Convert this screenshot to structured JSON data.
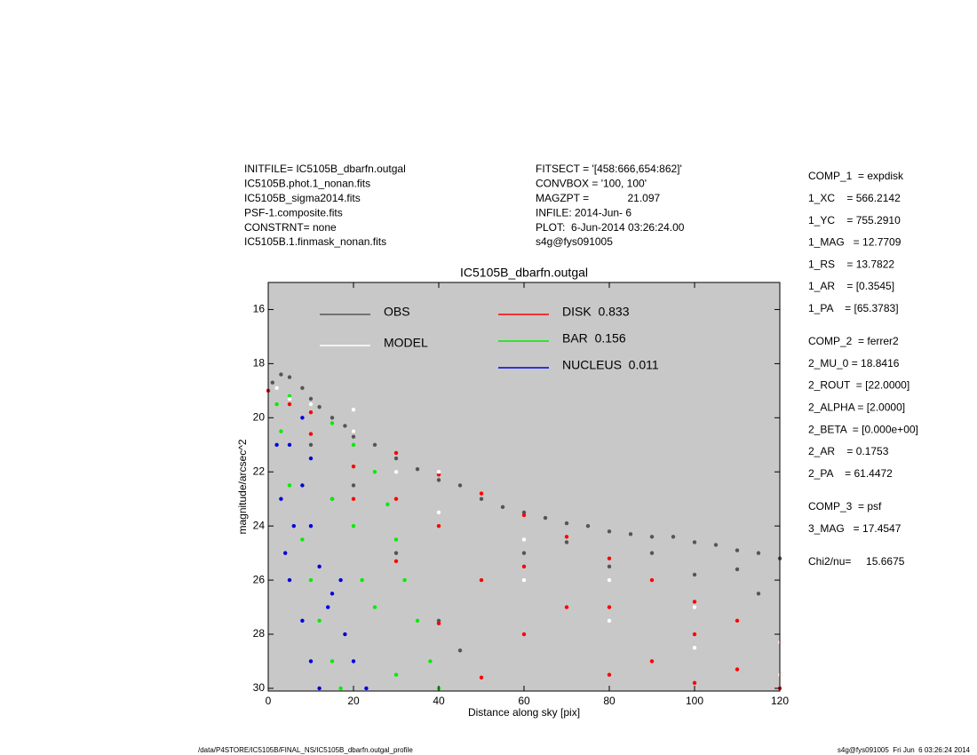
{
  "header_left": [
    "INITFILE= IC5105B_dbarfn.outgal",
    "IC5105B.phot.1_nonan.fits",
    "IC5105B_sigma2014.fits",
    "PSF-1.composite.fits",
    "CONSTRNT= none",
    "IC5105B.1.finmask_nonan.fits"
  ],
  "header_middle": [
    "FITSECT = '[458:666,654:862]'",
    "CONVBOX = '100, 100'",
    "MAGZPT =             21.097",
    "INFILE: 2014-Jun- 6",
    "PLOT:  6-Jun-2014 03:26:24.00",
    "s4g@fys091005"
  ],
  "parameters": [
    [
      "COMP_1  = expdisk",
      "1_XC    = 566.2142",
      "1_YC    = 755.2910",
      "1_MAG   = 12.7709",
      "1_RS    = 13.7822",
      "1_AR    = [0.3545]",
      "1_PA    = [65.3783]"
    ],
    [
      "COMP_2  = ferrer2",
      "2_MU_0 = 18.8416",
      "2_ROUT  = [22.0000]",
      "2_ALPHA = [2.0000]",
      "2_BETA  = [0.000e+00]",
      "2_AR    = 0.1753",
      "2_PA    = 61.4472"
    ],
    [
      "COMP_3  = psf",
      "3_MAG   = 17.4547"
    ],
    [
      "Chi2/nu=     15.6675"
    ]
  ],
  "footer_left": "/data/P4STORE/IC5105B/FINAL_NS/IC5105B_dbarfn.outgal_profile",
  "footer_right": "s4g@fys091005  Fri Jun  6 03:26:24 2014",
  "chart_data": {
    "type": "scatter",
    "title": "IC5105B_dbarfn.outgal",
    "x_label": "Distance along sky [pix]",
    "y_label": "magnitude/arcsec^2",
    "xlim": [
      0,
      120
    ],
    "ylim": [
      30.1,
      15
    ],
    "xticks": [
      0,
      20,
      40,
      60,
      80,
      100,
      120
    ],
    "yticks": [
      16,
      18,
      20,
      22,
      24,
      26,
      28,
      30
    ],
    "background": "#c8c8c8",
    "series": [
      {
        "name": "OBS",
        "color": "#555555",
        "x": [
          1,
          3,
          5,
          8,
          10,
          12,
          15,
          18,
          20,
          25,
          30,
          35,
          40,
          45,
          50,
          55,
          60,
          65,
          70,
          75,
          80,
          85,
          90,
          95,
          100,
          105,
          110,
          115,
          120,
          20,
          30,
          40,
          45,
          60,
          80,
          100,
          115,
          10,
          15,
          70,
          90,
          110
        ],
        "values": [
          18.7,
          18.4,
          18.5,
          18.9,
          19.3,
          19.6,
          20.0,
          20.3,
          20.7,
          21.0,
          21.5,
          21.9,
          22.3,
          22.5,
          23.0,
          23.3,
          23.5,
          23.7,
          23.9,
          24.0,
          24.2,
          24.3,
          24.4,
          24.4,
          24.6,
          24.7,
          24.9,
          25.0,
          25.2,
          22.5,
          25.0,
          27.5,
          28.6,
          25.0,
          25.5,
          25.8,
          26.5,
          21.0,
          23.0,
          24.6,
          25.0,
          25.6
        ]
      },
      {
        "name": "DISK  0.833",
        "color": "#ff0000",
        "x": [
          0,
          10,
          20,
          30,
          40,
          50,
          60,
          70,
          80,
          90,
          100,
          110,
          120,
          5,
          10,
          20,
          30,
          40,
          50,
          20,
          40,
          60,
          80,
          100,
          120,
          60,
          80,
          30,
          50,
          70,
          90,
          110,
          100,
          120
        ],
        "values": [
          19.0,
          19.8,
          20.5,
          21.3,
          22.1,
          22.8,
          23.6,
          24.4,
          25.2,
          26.0,
          26.8,
          27.5,
          28.3,
          19.5,
          20.6,
          23.0,
          25.3,
          27.6,
          29.6,
          21.8,
          24.0,
          25.5,
          27.0,
          28.0,
          29.5,
          28.0,
          29.5,
          23.0,
          26.0,
          27.0,
          29.0,
          29.3,
          29.8,
          30.0
        ]
      },
      {
        "name": "BAR  0.156",
        "color": "#00ee00",
        "x": [
          2,
          5,
          10,
          15,
          20,
          25,
          28,
          30,
          32,
          35,
          38,
          40,
          3,
          5,
          8,
          10,
          12,
          15,
          17,
          20,
          25,
          15,
          22,
          30
        ],
        "values": [
          19.5,
          19.2,
          19.5,
          20.2,
          21.0,
          22.0,
          23.2,
          24.5,
          26.0,
          27.5,
          29.0,
          30.0,
          20.5,
          22.5,
          24.5,
          26.0,
          27.5,
          29.0,
          30.0,
          24.0,
          27.0,
          23.0,
          26.0,
          29.5
        ]
      },
      {
        "name": "NUCLEUS  0.011",
        "color": "#0000dd",
        "x": [
          2,
          3,
          4,
          5,
          8,
          10,
          12,
          5,
          8,
          10,
          12,
          15,
          18,
          20,
          23,
          8,
          10,
          6,
          14,
          17
        ],
        "values": [
          21.0,
          23.0,
          25.0,
          26.0,
          27.5,
          29.0,
          30.0,
          21.0,
          22.5,
          24.0,
          25.5,
          26.5,
          28.0,
          29.0,
          30.0,
          20.0,
          21.5,
          24.0,
          27.0,
          26.0
        ]
      },
      {
        "name": "MODEL",
        "color": "#ffffff",
        "x": [
          2,
          5,
          10,
          20,
          30,
          40,
          60,
          80,
          100,
          120,
          20,
          40,
          60,
          80,
          100,
          120
        ],
        "values": [
          18.9,
          19.3,
          19.5,
          20.5,
          22.0,
          23.5,
          26.0,
          27.5,
          28.5,
          29.5,
          19.7,
          22.0,
          24.5,
          26.0,
          27.0,
          28.3
        ]
      }
    ]
  }
}
